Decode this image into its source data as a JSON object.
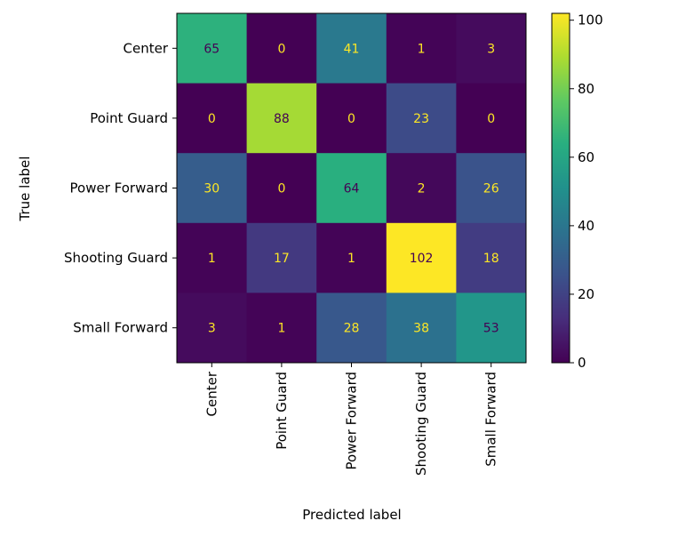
{
  "chart_data": {
    "type": "heatmap",
    "title": "",
    "xlabel": "Predicted label",
    "ylabel": "True label",
    "x_categories": [
      "Center",
      "Point Guard",
      "Power Forward",
      "Shooting Guard",
      "Small Forward"
    ],
    "y_categories": [
      "Center",
      "Point Guard",
      "Power Forward",
      "Shooting Guard",
      "Small Forward"
    ],
    "values": [
      [
        65,
        0,
        41,
        1,
        3
      ],
      [
        0,
        88,
        0,
        23,
        0
      ],
      [
        30,
        0,
        64,
        2,
        26
      ],
      [
        1,
        17,
        1,
        102,
        18
      ],
      [
        3,
        1,
        28,
        38,
        53
      ]
    ],
    "colormap": "viridis",
    "colorbar": {
      "range": [
        0,
        102
      ],
      "ticks": [
        "0",
        "20",
        "40",
        "60",
        "80",
        "100"
      ]
    },
    "grid": false,
    "legend": "colorbar-right",
    "text_colors": {
      "dark": "#440154",
      "light": "#fde725"
    }
  }
}
